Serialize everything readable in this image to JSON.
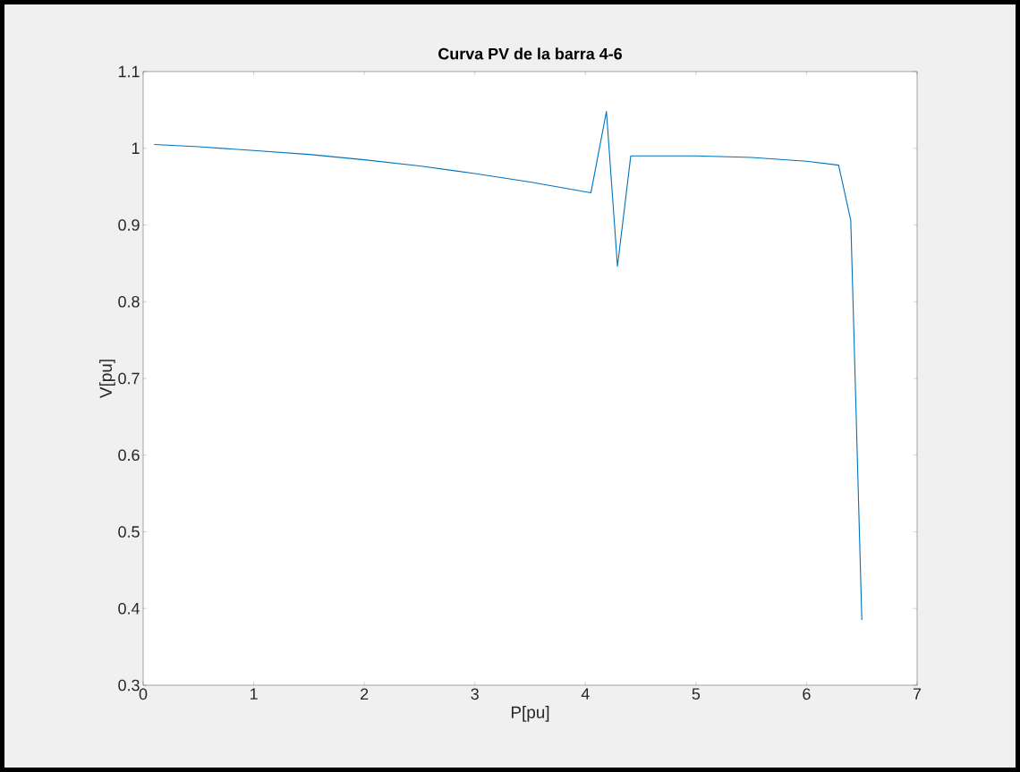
{
  "chart_data": {
    "type": "line",
    "title": "Curva PV de la barra 4-6",
    "xlabel": "P[pu]",
    "ylabel": "V[pu]",
    "x": [
      0.1,
      0.5,
      1.0,
      1.5,
      2.0,
      2.5,
      3.0,
      3.5,
      4.05,
      4.19,
      4.29,
      4.41,
      5.0,
      5.5,
      6.0,
      6.29,
      6.4,
      6.5
    ],
    "series": [
      {
        "color": "#0072bd",
        "values": [
          1.005,
          1.002,
          0.997,
          0.992,
          0.985,
          0.977,
          0.967,
          0.956,
          0.942,
          1.048,
          0.846,
          0.99,
          0.99,
          0.988,
          0.983,
          0.978,
          0.906,
          0.385
        ]
      }
    ],
    "xlim": [
      0,
      7
    ],
    "ylim": [
      0.3,
      1.1
    ],
    "xticks": [
      0,
      1,
      2,
      3,
      4,
      5,
      6,
      7
    ],
    "yticks": [
      0.3,
      0.4,
      0.5,
      0.6,
      0.7,
      0.8,
      0.9,
      1,
      1.1
    ],
    "grid": false,
    "marker": "none",
    "line_style": "solid"
  }
}
